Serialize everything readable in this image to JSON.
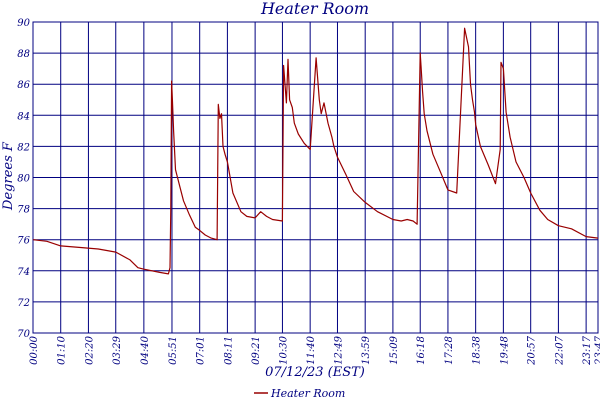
{
  "chart_data": {
    "type": "line",
    "title": "Heater Room",
    "xlabel": "07/12/23 (EST)",
    "ylabel": "Degrees F",
    "ylim": [
      70,
      90
    ],
    "yticks": [
      70,
      72,
      74,
      76,
      78,
      80,
      82,
      84,
      86,
      88,
      90
    ],
    "xlim": [
      "00:00",
      "23:47"
    ],
    "xticks": [
      "00:00",
      "01:10",
      "02:20",
      "03:29",
      "04:40",
      "05:51",
      "07:01",
      "08:11",
      "09:21",
      "10:30",
      "11:40",
      "12:49",
      "13:59",
      "15:09",
      "16:18",
      "17:28",
      "18:38",
      "19:48",
      "20:57",
      "22:07",
      "23:17",
      "23:47"
    ],
    "grid": true,
    "legend_position": "bottom",
    "line_color": "#990000",
    "series": [
      {
        "name": "Heater Room",
        "x": [
          "00:00",
          "00:35",
          "01:10",
          "02:00",
          "02:45",
          "03:29",
          "04:05",
          "04:25",
          "04:40",
          "05:20",
          "05:42",
          "05:46",
          "05:48",
          "05:50",
          "05:52",
          "05:55",
          "06:00",
          "06:05",
          "06:10",
          "06:20",
          "06:35",
          "06:50",
          "07:01",
          "07:15",
          "07:30",
          "07:45",
          "07:48",
          "07:52",
          "07:56",
          "08:00",
          "08:05",
          "08:11",
          "08:25",
          "08:45",
          "09:00",
          "09:21",
          "09:35",
          "09:50",
          "10:05",
          "10:30",
          "10:33",
          "10:40",
          "10:44",
          "10:48",
          "10:55",
          "11:00",
          "11:10",
          "11:25",
          "11:40",
          "11:55",
          "12:03",
          "12:08",
          "12:15",
          "12:25",
          "12:35",
          "12:40",
          "12:49",
          "13:10",
          "13:30",
          "13:59",
          "14:30",
          "15:09",
          "15:30",
          "15:45",
          "16:00",
          "16:10",
          "16:18",
          "16:20",
          "16:24",
          "16:28",
          "16:35",
          "16:50",
          "17:10",
          "17:28",
          "17:50",
          "18:10",
          "18:20",
          "18:25",
          "18:30",
          "18:35",
          "18:38",
          "18:50",
          "19:10",
          "19:28",
          "19:40",
          "19:42",
          "19:48",
          "19:55",
          "20:05",
          "20:20",
          "20:40",
          "20:57",
          "21:20",
          "21:40",
          "22:07",
          "22:40",
          "23:17",
          "23:47"
        ],
        "y": [
          76.0,
          75.9,
          75.6,
          75.5,
          75.4,
          75.2,
          74.7,
          74.2,
          74.1,
          73.9,
          73.8,
          74.2,
          78.0,
          86.2,
          85.0,
          83.0,
          80.5,
          80.0,
          79.5,
          78.5,
          77.6,
          76.8,
          76.6,
          76.3,
          76.1,
          76.0,
          84.7,
          83.8,
          84.1,
          82.0,
          81.5,
          81.0,
          79.0,
          77.8,
          77.5,
          77.4,
          77.8,
          77.5,
          77.3,
          77.2,
          87.2,
          84.8,
          87.6,
          85.0,
          84.5,
          83.5,
          82.8,
          82.2,
          81.8,
          87.7,
          85.0,
          84.1,
          84.8,
          83.5,
          82.6,
          82.0,
          81.3,
          80.2,
          79.1,
          78.4,
          77.8,
          77.3,
          77.2,
          77.3,
          77.2,
          77.0,
          88.0,
          87.2,
          85.5,
          84.1,
          83.0,
          81.5,
          80.3,
          79.2,
          79.0,
          89.6,
          88.4,
          86.0,
          85.0,
          84.2,
          83.4,
          82.0,
          80.8,
          79.6,
          81.8,
          87.4,
          87.0,
          84.2,
          82.6,
          81.0,
          80.0,
          79.0,
          77.9,
          77.3,
          76.9,
          76.7,
          76.2,
          76.1
        ]
      }
    ]
  }
}
